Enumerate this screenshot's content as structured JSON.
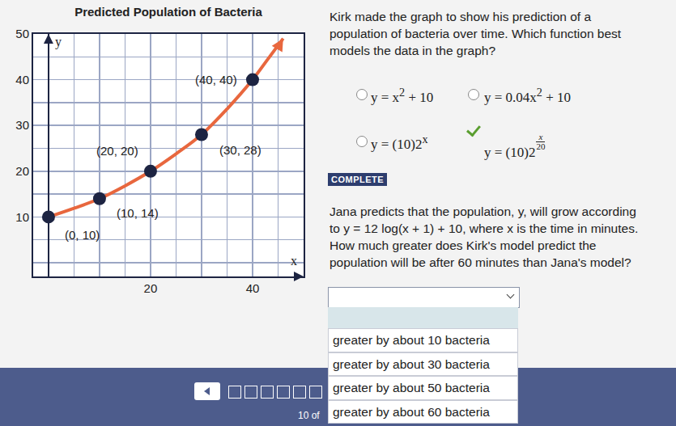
{
  "chart_data": {
    "type": "line",
    "title": "Predicted Population of Bacteria",
    "xlabel": "x",
    "ylabel": "y",
    "x": [
      0,
      5,
      10,
      15,
      20,
      25,
      30,
      35,
      40,
      43,
      46
    ],
    "values": [
      10,
      11.9,
      14,
      16.8,
      20,
      23.8,
      28,
      33.6,
      40,
      44.5,
      49
    ],
    "color": "#e8673e",
    "points": {
      "x": [
        0,
        10,
        20,
        30,
        40
      ],
      "values": [
        10,
        14,
        20,
        28,
        40
      ],
      "labels": [
        "(0, 10)",
        "(10, 14)",
        "(20, 20)",
        "(30, 28)",
        "(40, 40)"
      ],
      "color": "#1d2442",
      "marker": "circle"
    },
    "xlim": [
      -3,
      50
    ],
    "ylim": [
      -3,
      50
    ],
    "xticks": [
      20,
      40
    ],
    "yticks": [
      10,
      20,
      30,
      40,
      50
    ],
    "grid": true
  },
  "question1": {
    "text": "Kirk made the graph to show his prediction of a population of bacteria over time. Which function best models the data in the graph?",
    "options": [
      {
        "parts": [
          {
            "text": "y = x"
          },
          {
            "text": "2",
            "sup": true
          },
          {
            "text": " + 10"
          }
        ]
      },
      {
        "parts": [
          {
            "text": "y = 0.04x"
          },
          {
            "text": "2",
            "sup": true
          },
          {
            "text": " + 10"
          }
        ]
      },
      {
        "parts": [
          {
            "text": "y = (10)2"
          },
          {
            "text": "x",
            "sup": true
          }
        ]
      },
      {
        "parts": [
          {
            "text": "y = (10)2"
          },
          {
            "num": "x",
            "den": "20"
          }
        ]
      }
    ],
    "correct": 3,
    "status": "COMPLETE"
  },
  "question2": {
    "text": "Jana predicts that the population, y, will grow according to y = 12 log(x + 1) + 10, where x is the time in minutes. How much greater does Kirk's model predict the population will be after 60 minutes than Jana's model?",
    "options": [
      "greater by about 10 bacteria",
      "greater by about 30 bacteria",
      "greater by about 50 bacteria",
      "greater by about 60 bacteria"
    ]
  },
  "footer": "10 of"
}
